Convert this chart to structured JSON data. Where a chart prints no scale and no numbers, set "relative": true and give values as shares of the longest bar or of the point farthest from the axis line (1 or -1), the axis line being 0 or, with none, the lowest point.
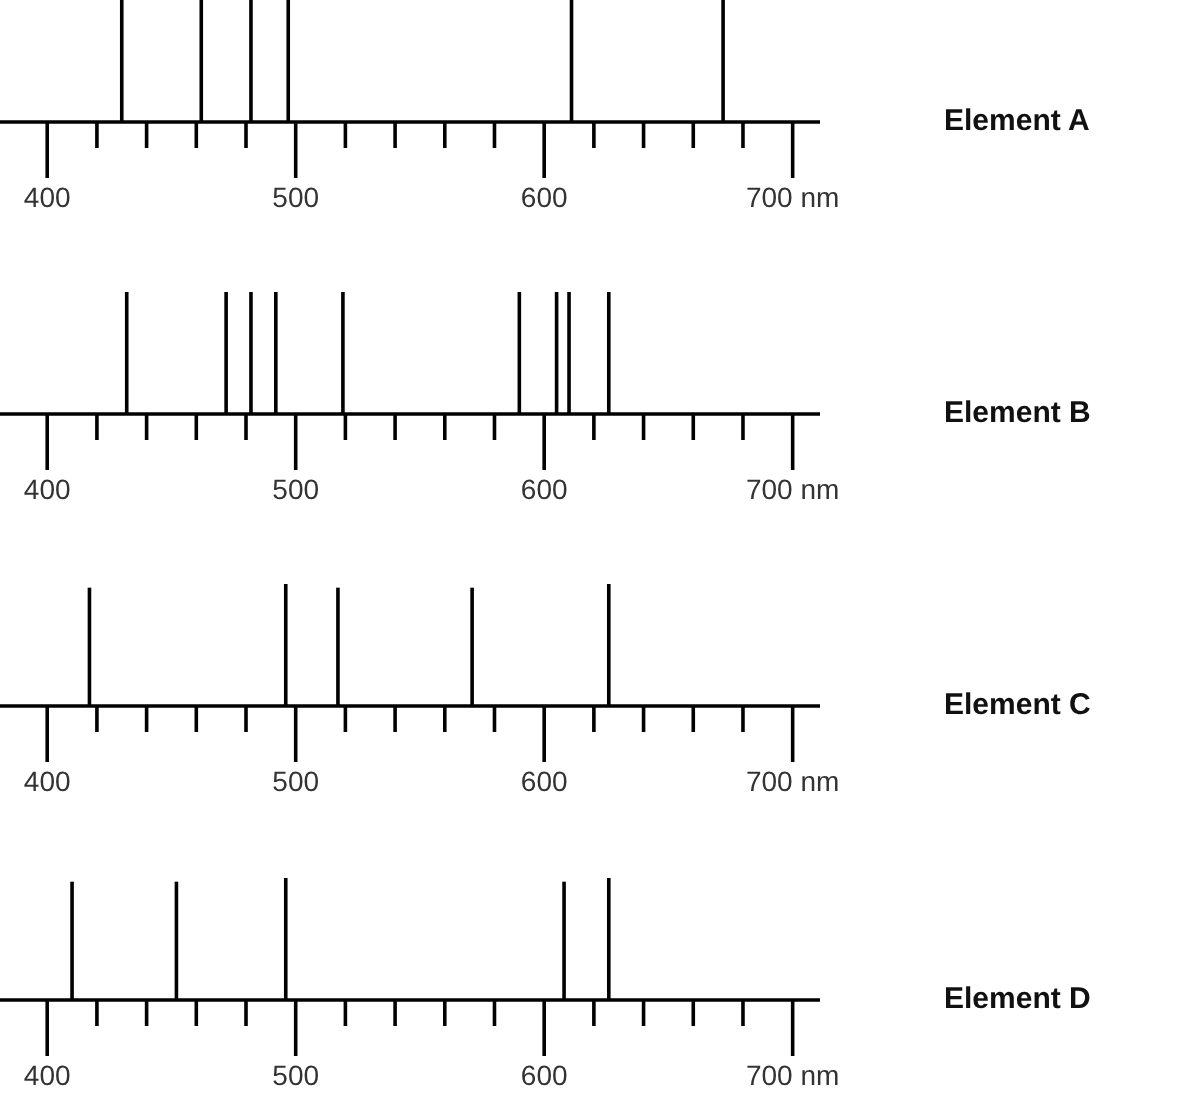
{
  "chart_data": [
    {
      "type": "bar",
      "annotations": [
        "Element A"
      ],
      "relative": true,
      "color": "#000000",
      "x": [
        430,
        462,
        482,
        497,
        611,
        672
      ],
      "values": [
        1,
        1,
        1,
        1,
        1,
        1
      ],
      "xlim": [
        381,
        711
      ],
      "xticks": [
        400,
        {
          "value": 420,
          "label": null
        },
        {
          "value": 440,
          "label": null
        },
        {
          "value": 460,
          "label": null
        },
        {
          "value": 480,
          "label": null
        },
        500,
        {
          "value": 520,
          "label": null
        },
        {
          "value": 540,
          "label": null
        },
        {
          "value": 560,
          "label": null
        },
        {
          "value": 580,
          "label": null
        },
        600,
        {
          "value": 620,
          "label": null
        },
        {
          "value": 640,
          "label": null
        },
        {
          "value": 660,
          "label": null
        },
        {
          "value": 680,
          "label": null
        },
        {
          "value": 700,
          "label": "700 nm"
        }
      ]
    },
    {
      "type": "bar",
      "annotations": [
        "Element B"
      ],
      "relative": true,
      "color": "#000000",
      "x": [
        432,
        472,
        482,
        492,
        519,
        590,
        605,
        610,
        626
      ],
      "values": [
        1,
        1,
        1,
        1,
        1,
        1,
        1,
        1,
        1
      ],
      "xlim": [
        381,
        711
      ],
      "xticks": [
        400,
        {
          "value": 420,
          "label": null
        },
        {
          "value": 440,
          "label": null
        },
        {
          "value": 460,
          "label": null
        },
        {
          "value": 480,
          "label": null
        },
        500,
        {
          "value": 520,
          "label": null
        },
        {
          "value": 540,
          "label": null
        },
        {
          "value": 560,
          "label": null
        },
        {
          "value": 580,
          "label": null
        },
        600,
        {
          "value": 620,
          "label": null
        },
        {
          "value": 640,
          "label": null
        },
        {
          "value": 660,
          "label": null
        },
        {
          "value": 680,
          "label": null
        },
        {
          "value": 700,
          "label": "700 nm"
        }
      ]
    },
    {
      "type": "bar",
      "annotations": [
        "Element C"
      ],
      "relative": true,
      "color": "#000000",
      "x": [
        417,
        496,
        517,
        571,
        626
      ],
      "values": [
        0.97,
        1,
        0.97,
        0.97,
        1
      ],
      "xlim": [
        381,
        711
      ],
      "xticks": [
        400,
        {
          "value": 420,
          "label": null
        },
        {
          "value": 440,
          "label": null
        },
        {
          "value": 460,
          "label": null
        },
        {
          "value": 480,
          "label": null
        },
        500,
        {
          "value": 520,
          "label": null
        },
        {
          "value": 540,
          "label": null
        },
        {
          "value": 560,
          "label": null
        },
        {
          "value": 580,
          "label": null
        },
        600,
        {
          "value": 620,
          "label": null
        },
        {
          "value": 640,
          "label": null
        },
        {
          "value": 660,
          "label": null
        },
        {
          "value": 680,
          "label": null
        },
        {
          "value": 700,
          "label": "700 nm"
        }
      ]
    },
    {
      "type": "bar",
      "annotations": [
        "Element D"
      ],
      "relative": true,
      "color": "#000000",
      "x": [
        410,
        452,
        496,
        608,
        626
      ],
      "values": [
        0.97,
        0.97,
        1,
        0.97,
        1
      ],
      "xlim": [
        381,
        711
      ],
      "xticks": [
        400,
        {
          "value": 420,
          "label": null
        },
        {
          "value": 440,
          "label": null
        },
        {
          "value": 460,
          "label": null
        },
        {
          "value": 480,
          "label": null
        },
        500,
        {
          "value": 520,
          "label": null
        },
        {
          "value": 540,
          "label": null
        },
        {
          "value": 560,
          "label": null
        },
        {
          "value": 580,
          "label": null
        },
        600,
        {
          "value": 620,
          "label": null
        },
        {
          "value": 640,
          "label": null
        },
        {
          "value": 660,
          "label": null
        },
        {
          "value": 680,
          "label": null
        },
        {
          "value": 700,
          "label": "700 nm"
        }
      ]
    }
  ]
}
